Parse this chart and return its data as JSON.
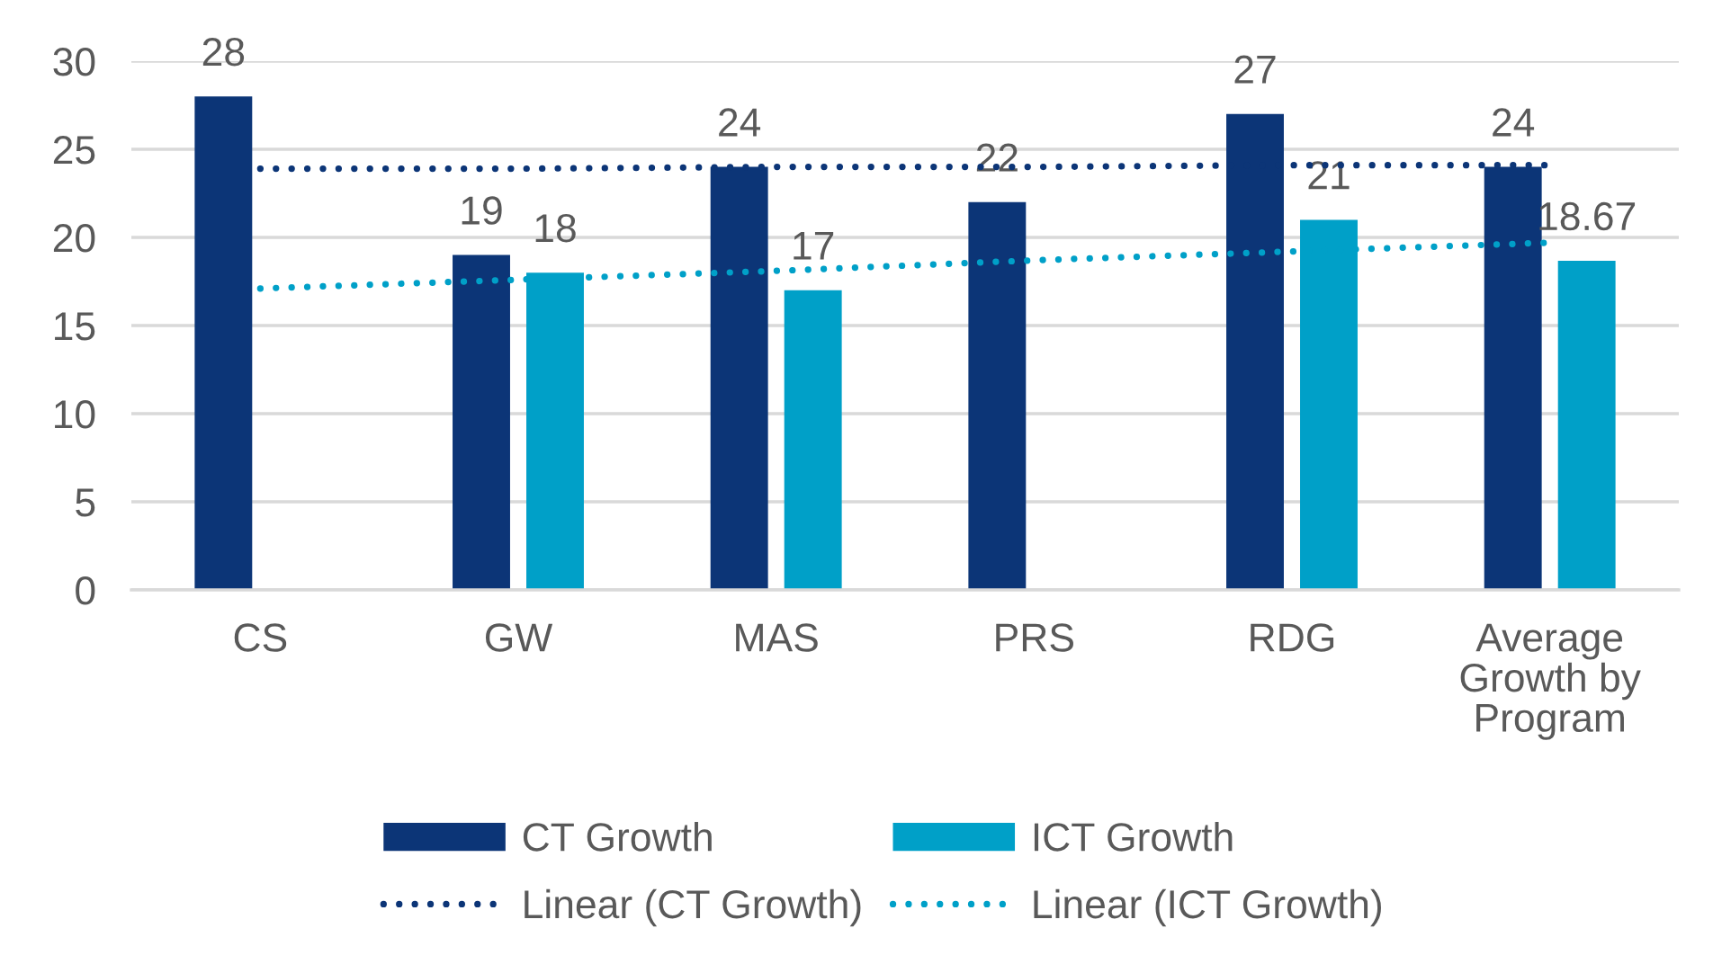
{
  "chart_data": {
    "type": "bar",
    "categories": [
      "CS",
      "GW",
      "MAS",
      "PRS",
      "RDG",
      "Average\nGrowth by\nProgram"
    ],
    "series": [
      {
        "name": "CT Growth",
        "color": "#0c3577",
        "values": [
          28,
          19,
          24,
          22,
          27,
          24
        ],
        "value_labels": [
          "28",
          "19",
          "24",
          "22",
          "27",
          "24"
        ]
      },
      {
        "name": "ICT Growth",
        "color": "#00a0c8",
        "values": [
          null,
          18,
          17,
          null,
          21,
          18.67
        ],
        "value_labels": [
          null,
          "18",
          "17",
          null,
          "21",
          "18.67"
        ]
      },
      {
        "name": "Linear (CT Growth)",
        "type": "line",
        "color": "#0c3577",
        "line_style": "dotted",
        "values": [
          23.9,
          23.9,
          24.0,
          24.0,
          24.1,
          24.1
        ]
      },
      {
        "name": "Linear (ICT Growth)",
        "type": "line",
        "color": "#00a0c8",
        "line_style": "dotted",
        "values": [
          17.1,
          17.6,
          18.1,
          18.7,
          19.2,
          19.7
        ]
      }
    ],
    "ylim": [
      0,
      30
    ],
    "yticks": [
      0,
      5,
      10,
      15,
      20,
      25,
      30
    ],
    "grid": "y",
    "legend": "bottom"
  }
}
